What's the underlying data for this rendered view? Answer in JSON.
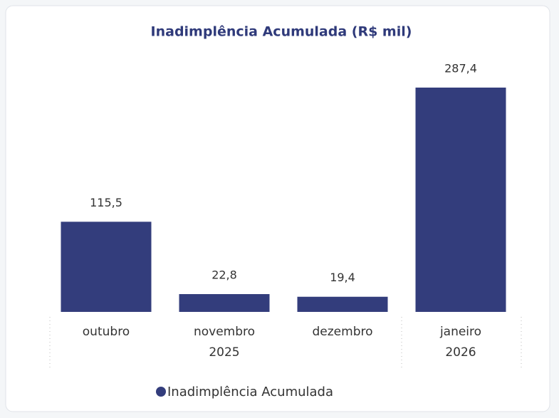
{
  "chart_data": {
    "type": "bar",
    "title": "Inadimplência Acumulada (R$ mil)",
    "categories": [
      "outubro",
      "novembro",
      "dezembro",
      "janeiro"
    ],
    "groups": [
      {
        "label": "2025",
        "count": 3
      },
      {
        "label": "2026",
        "count": 1
      }
    ],
    "series": [
      {
        "name": "Inadimplência Acumulada",
        "color": "#333d7c",
        "values": [
          115.5,
          22.8,
          19.4,
          287.4
        ],
        "value_labels": [
          "115,5",
          "22,8",
          "19,4",
          "287,4"
        ]
      }
    ],
    "ylim": [
      0,
      287.4
    ],
    "legend": "bottom"
  }
}
